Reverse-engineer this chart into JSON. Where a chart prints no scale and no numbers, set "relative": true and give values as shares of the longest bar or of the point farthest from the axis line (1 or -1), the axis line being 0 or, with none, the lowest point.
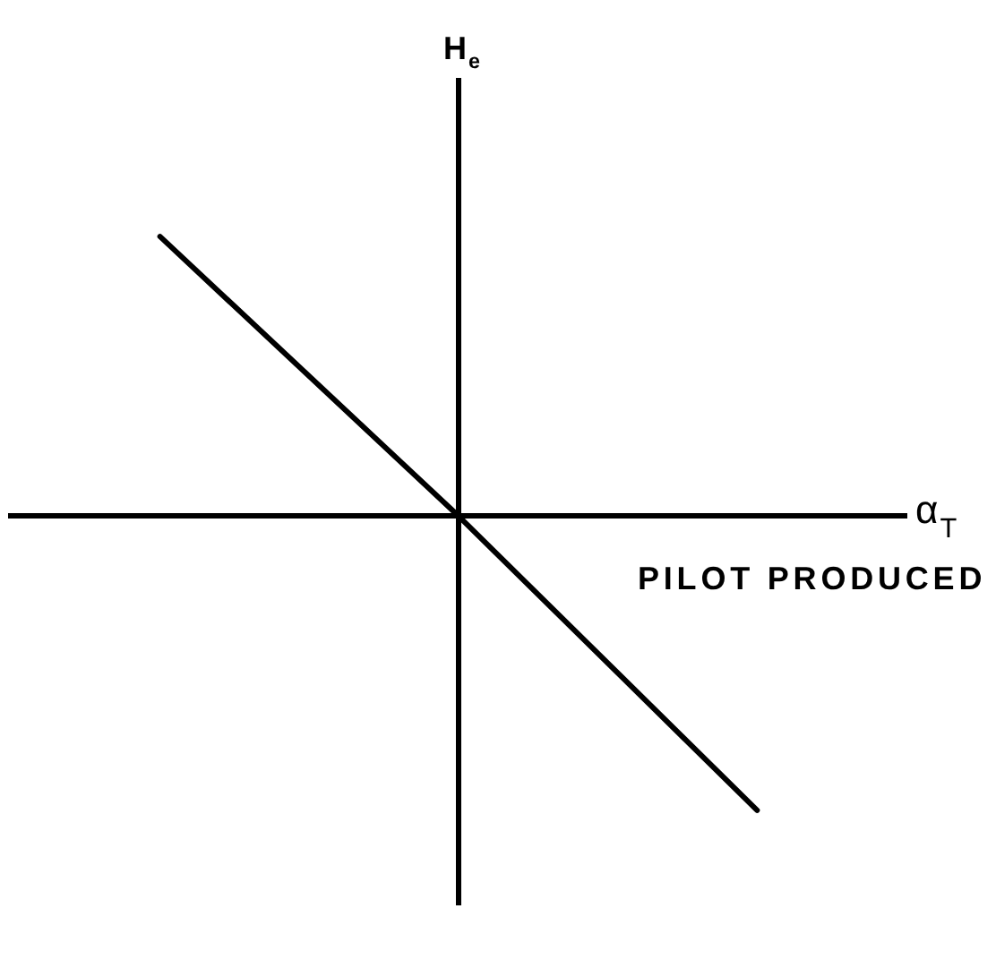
{
  "chart_data": {
    "type": "line",
    "xlabel": "α$_{T}$",
    "annotations": [
      "H$_{e}$"
    ],
    "categories": [
      null,
      null,
      null
    ],
    "relative": true,
    "series": [
      {
        "name": "PILOT PRODUCED",
        "color": "#000000",
        "values": [
          0.95,
          0,
          -1
        ]
      }
    ],
    "grid": false,
    "legend": false,
    "marker": "none",
    "line_style": "solid"
  }
}
